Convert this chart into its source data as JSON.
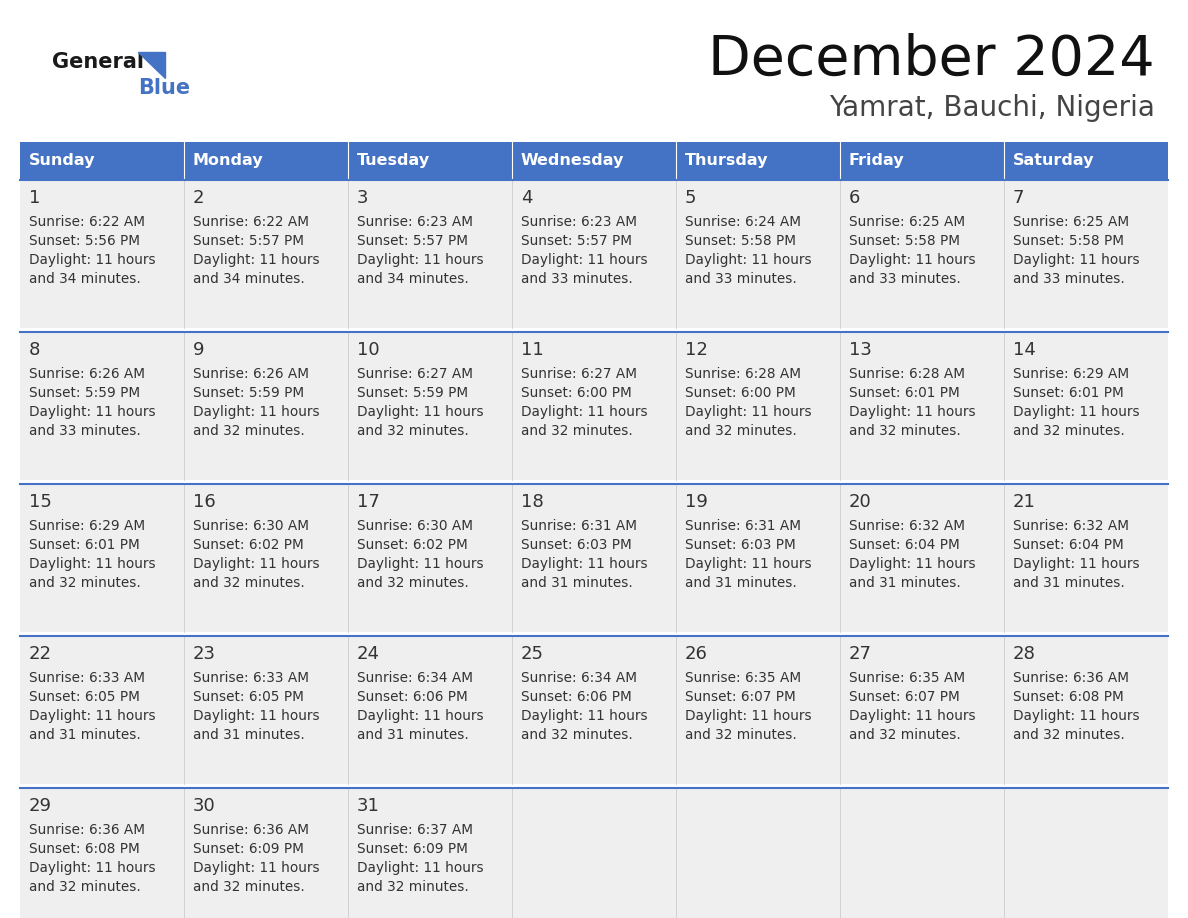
{
  "title": "December 2024",
  "subtitle": "Yamrat, Bauchi, Nigeria",
  "header_bg": "#4472C4",
  "header_text_color": "#FFFFFF",
  "day_names": [
    "Sunday",
    "Monday",
    "Tuesday",
    "Wednesday",
    "Thursday",
    "Friday",
    "Saturday"
  ],
  "row_bg": "#EFEFEF",
  "day_number_bg": "#E8E8E8",
  "border_color": "#4472C4",
  "text_color": "#333333",
  "logo_general_color": "#1a1a1a",
  "logo_blue_color": "#4472C4",
  "logo_triangle_color": "#4472C4",
  "calendar": [
    [
      {
        "day": 1,
        "sunrise": "6:22 AM",
        "sunset": "5:56 PM",
        "daylight": "11 hours and 34 minutes."
      },
      {
        "day": 2,
        "sunrise": "6:22 AM",
        "sunset": "5:57 PM",
        "daylight": "11 hours and 34 minutes."
      },
      {
        "day": 3,
        "sunrise": "6:23 AM",
        "sunset": "5:57 PM",
        "daylight": "11 hours and 34 minutes."
      },
      {
        "day": 4,
        "sunrise": "6:23 AM",
        "sunset": "5:57 PM",
        "daylight": "11 hours and 33 minutes."
      },
      {
        "day": 5,
        "sunrise": "6:24 AM",
        "sunset": "5:58 PM",
        "daylight": "11 hours and 33 minutes."
      },
      {
        "day": 6,
        "sunrise": "6:25 AM",
        "sunset": "5:58 PM",
        "daylight": "11 hours and 33 minutes."
      },
      {
        "day": 7,
        "sunrise": "6:25 AM",
        "sunset": "5:58 PM",
        "daylight": "11 hours and 33 minutes."
      }
    ],
    [
      {
        "day": 8,
        "sunrise": "6:26 AM",
        "sunset": "5:59 PM",
        "daylight": "11 hours and 33 minutes."
      },
      {
        "day": 9,
        "sunrise": "6:26 AM",
        "sunset": "5:59 PM",
        "daylight": "11 hours and 32 minutes."
      },
      {
        "day": 10,
        "sunrise": "6:27 AM",
        "sunset": "5:59 PM",
        "daylight": "11 hours and 32 minutes."
      },
      {
        "day": 11,
        "sunrise": "6:27 AM",
        "sunset": "6:00 PM",
        "daylight": "11 hours and 32 minutes."
      },
      {
        "day": 12,
        "sunrise": "6:28 AM",
        "sunset": "6:00 PM",
        "daylight": "11 hours and 32 minutes."
      },
      {
        "day": 13,
        "sunrise": "6:28 AM",
        "sunset": "6:01 PM",
        "daylight": "11 hours and 32 minutes."
      },
      {
        "day": 14,
        "sunrise": "6:29 AM",
        "sunset": "6:01 PM",
        "daylight": "11 hours and 32 minutes."
      }
    ],
    [
      {
        "day": 15,
        "sunrise": "6:29 AM",
        "sunset": "6:01 PM",
        "daylight": "11 hours and 32 minutes."
      },
      {
        "day": 16,
        "sunrise": "6:30 AM",
        "sunset": "6:02 PM",
        "daylight": "11 hours and 32 minutes."
      },
      {
        "day": 17,
        "sunrise": "6:30 AM",
        "sunset": "6:02 PM",
        "daylight": "11 hours and 32 minutes."
      },
      {
        "day": 18,
        "sunrise": "6:31 AM",
        "sunset": "6:03 PM",
        "daylight": "11 hours and 31 minutes."
      },
      {
        "day": 19,
        "sunrise": "6:31 AM",
        "sunset": "6:03 PM",
        "daylight": "11 hours and 31 minutes."
      },
      {
        "day": 20,
        "sunrise": "6:32 AM",
        "sunset": "6:04 PM",
        "daylight": "11 hours and 31 minutes."
      },
      {
        "day": 21,
        "sunrise": "6:32 AM",
        "sunset": "6:04 PM",
        "daylight": "11 hours and 31 minutes."
      }
    ],
    [
      {
        "day": 22,
        "sunrise": "6:33 AM",
        "sunset": "6:05 PM",
        "daylight": "11 hours and 31 minutes."
      },
      {
        "day": 23,
        "sunrise": "6:33 AM",
        "sunset": "6:05 PM",
        "daylight": "11 hours and 31 minutes."
      },
      {
        "day": 24,
        "sunrise": "6:34 AM",
        "sunset": "6:06 PM",
        "daylight": "11 hours and 31 minutes."
      },
      {
        "day": 25,
        "sunrise": "6:34 AM",
        "sunset": "6:06 PM",
        "daylight": "11 hours and 32 minutes."
      },
      {
        "day": 26,
        "sunrise": "6:35 AM",
        "sunset": "6:07 PM",
        "daylight": "11 hours and 32 minutes."
      },
      {
        "day": 27,
        "sunrise": "6:35 AM",
        "sunset": "6:07 PM",
        "daylight": "11 hours and 32 minutes."
      },
      {
        "day": 28,
        "sunrise": "6:36 AM",
        "sunset": "6:08 PM",
        "daylight": "11 hours and 32 minutes."
      }
    ],
    [
      {
        "day": 29,
        "sunrise": "6:36 AM",
        "sunset": "6:08 PM",
        "daylight": "11 hours and 32 minutes."
      },
      {
        "day": 30,
        "sunrise": "6:36 AM",
        "sunset": "6:09 PM",
        "daylight": "11 hours and 32 minutes."
      },
      {
        "day": 31,
        "sunrise": "6:37 AM",
        "sunset": "6:09 PM",
        "daylight": "11 hours and 32 minutes."
      },
      null,
      null,
      null,
      null
    ]
  ]
}
